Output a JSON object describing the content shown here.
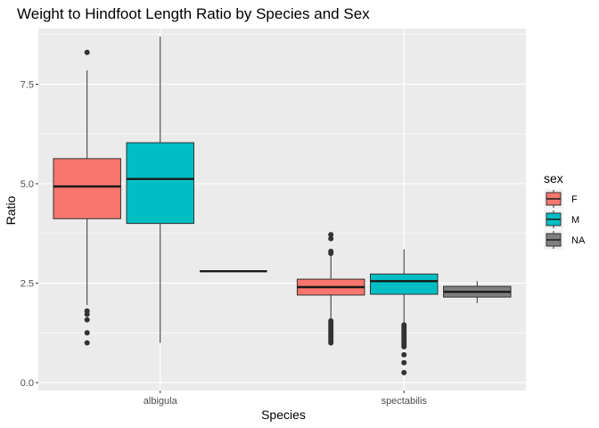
{
  "chart_data": {
    "type": "boxplot",
    "title": "Weight to Hindfoot Length Ratio by Species and Sex",
    "xlabel": "Species",
    "ylabel": "Ratio",
    "categories": [
      "albigula",
      "spectabilis"
    ],
    "ylim": [
      -0.2,
      8.9
    ],
    "yticks": [
      0.0,
      2.5,
      5.0,
      7.5
    ],
    "ytick_labels": [
      "0.0",
      "2.5",
      "5.0",
      "7.5"
    ],
    "grid": true,
    "legend": {
      "title": "sex",
      "position": "right",
      "entries": [
        {
          "label": "F",
          "color": "#F8766D"
        },
        {
          "label": "M",
          "color": "#00BFC4"
        },
        {
          "label": "NA",
          "color": "#7F7F7F"
        }
      ]
    },
    "series": [
      {
        "name": "F",
        "color": "#F8766D",
        "boxes": [
          {
            "category": "albigula",
            "whisker_low": 1.95,
            "q1": 4.12,
            "median": 4.93,
            "q3": 5.63,
            "whisker_high": 7.85,
            "outliers": [
              8.3,
              1.8,
              1.72,
              1.58,
              1.25,
              1.0
            ]
          },
          {
            "category": "spectabilis",
            "whisker_low": 1.6,
            "q1": 2.2,
            "median": 2.4,
            "q3": 2.6,
            "whisker_high": 3.2,
            "outliers": [
              3.72,
              3.62,
              3.3,
              3.25,
              1.55,
              1.5,
              1.45,
              1.4,
              1.35,
              1.3,
              1.25,
              1.2,
              1.15,
              1.1,
              1.05,
              1.0
            ]
          }
        ]
      },
      {
        "name": "M",
        "color": "#00BFC4",
        "boxes": [
          {
            "category": "albigula",
            "whisker_low": 1.0,
            "q1": 4.0,
            "median": 5.12,
            "q3": 6.03,
            "whisker_high": 8.7,
            "outliers": []
          },
          {
            "category": "spectabilis",
            "whisker_low": 1.5,
            "q1": 2.22,
            "median": 2.55,
            "q3": 2.73,
            "whisker_high": 3.35,
            "outliers": [
              1.45,
              1.4,
              1.35,
              1.3,
              1.25,
              1.2,
              1.15,
              1.1,
              1.05,
              1.0,
              0.95,
              0.9,
              0.7,
              0.5,
              0.25
            ]
          }
        ]
      },
      {
        "name": "NA",
        "color": "#7F7F7F",
        "boxes": [
          {
            "category": "albigula",
            "whisker_low": 2.8,
            "q1": 2.8,
            "median": 2.8,
            "q3": 2.8,
            "whisker_high": 2.8,
            "outliers": []
          },
          {
            "category": "spectabilis",
            "whisker_low": 2.0,
            "q1": 2.15,
            "median": 2.28,
            "q3": 2.42,
            "whisker_high": 2.55,
            "outliers": []
          }
        ]
      }
    ]
  }
}
